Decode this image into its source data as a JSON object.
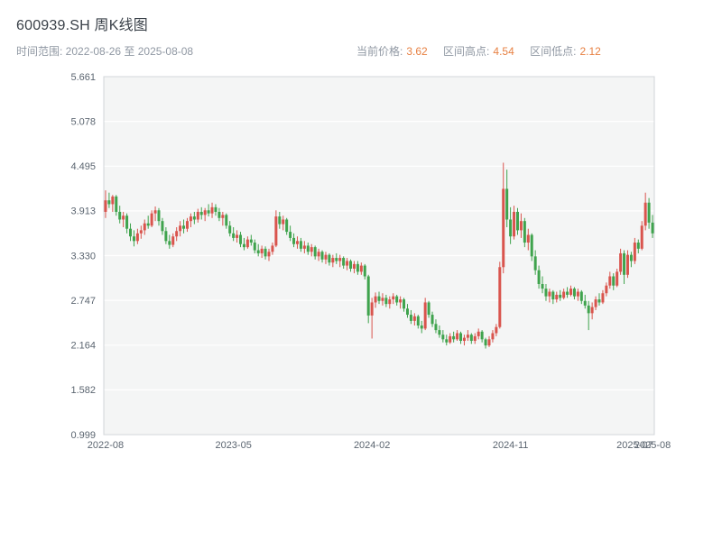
{
  "header": {
    "title": "600939.SH 周K线图",
    "time_range": "时间范围: 2022-08-26 至 2025-08-08",
    "stats": [
      {
        "label": "当前价格:",
        "value": "3.62"
      },
      {
        "label": "区间高点:",
        "value": "4.54"
      },
      {
        "label": "区间低点:",
        "value": "2.12"
      }
    ]
  },
  "colors": {
    "up_candle": "#d9544d",
    "down_candle": "#3fa34d",
    "plot_background": "#f4f5f5",
    "gridline": "#ffffff",
    "tick_text": "#5b6570",
    "accent_value": "#e78143",
    "plot_border": "#d0d4d8",
    "title_text": "#3a4149",
    "subtitle_text": "#9098a3"
  },
  "chart_data": {
    "type": "candlestick",
    "title": "600939.SH 周K线图",
    "interval": "weekly",
    "time_range": [
      "2022-08-26",
      "2025-08-08"
    ],
    "current_price": 3.62,
    "range_high": 4.54,
    "range_low": 2.12,
    "ylim": [
      0.999,
      5.661
    ],
    "y_tick_labels": [
      "0.999",
      "1.582",
      "2.164",
      "2.747",
      "3.330",
      "3.913",
      "4.495",
      "5.078",
      "5.661"
    ],
    "x_ticks": [
      {
        "index": 0,
        "label": "2022-08"
      },
      {
        "index": 36,
        "label": "2023-05"
      },
      {
        "index": 75,
        "label": "2024-02"
      },
      {
        "index": 114,
        "label": "2024-11"
      },
      {
        "index": 149,
        "label": "2025-07"
      },
      {
        "index": 154,
        "label": "2025-08"
      }
    ],
    "grid": true,
    "legend": false,
    "ohlc": [
      [
        3.9,
        4.18,
        3.82,
        4.05
      ],
      [
        4.05,
        4.15,
        3.95,
        4.0
      ],
      [
        4.0,
        4.12,
        3.9,
        4.1
      ],
      [
        4.1,
        4.12,
        3.85,
        3.9
      ],
      [
        3.9,
        3.98,
        3.75,
        3.8
      ],
      [
        3.8,
        3.9,
        3.7,
        3.85
      ],
      [
        3.85,
        3.88,
        3.62,
        3.68
      ],
      [
        3.68,
        3.75,
        3.52,
        3.58
      ],
      [
        3.58,
        3.66,
        3.45,
        3.52
      ],
      [
        3.52,
        3.68,
        3.48,
        3.62
      ],
      [
        3.62,
        3.72,
        3.55,
        3.66
      ],
      [
        3.66,
        3.8,
        3.6,
        3.75
      ],
      [
        3.75,
        3.85,
        3.68,
        3.72
      ],
      [
        3.72,
        3.92,
        3.7,
        3.88
      ],
      [
        3.88,
        3.97,
        3.78,
        3.92
      ],
      [
        3.92,
        3.95,
        3.72,
        3.78
      ],
      [
        3.78,
        3.82,
        3.6,
        3.65
      ],
      [
        3.65,
        3.7,
        3.48,
        3.52
      ],
      [
        3.52,
        3.6,
        3.42,
        3.47
      ],
      [
        3.47,
        3.62,
        3.44,
        3.58
      ],
      [
        3.58,
        3.7,
        3.52,
        3.65
      ],
      [
        3.65,
        3.78,
        3.58,
        3.72
      ],
      [
        3.72,
        3.8,
        3.62,
        3.68
      ],
      [
        3.68,
        3.82,
        3.64,
        3.78
      ],
      [
        3.78,
        3.88,
        3.7,
        3.84
      ],
      [
        3.84,
        3.9,
        3.74,
        3.8
      ],
      [
        3.8,
        3.94,
        3.76,
        3.9
      ],
      [
        3.9,
        3.96,
        3.8,
        3.86
      ],
      [
        3.86,
        3.95,
        3.78,
        3.92
      ],
      [
        3.92,
        4.0,
        3.84,
        3.88
      ],
      [
        3.88,
        4.02,
        3.82,
        3.96
      ],
      [
        3.96,
        4.0,
        3.85,
        3.9
      ],
      [
        3.9,
        3.95,
        3.78,
        3.82
      ],
      [
        3.82,
        3.9,
        3.72,
        3.86
      ],
      [
        3.86,
        3.88,
        3.68,
        3.72
      ],
      [
        3.72,
        3.78,
        3.58,
        3.62
      ],
      [
        3.62,
        3.7,
        3.52,
        3.56
      ],
      [
        3.56,
        3.66,
        3.5,
        3.6
      ],
      [
        3.6,
        3.64,
        3.44,
        3.48
      ],
      [
        3.48,
        3.56,
        3.4,
        3.44
      ],
      [
        3.44,
        3.58,
        3.42,
        3.54
      ],
      [
        3.54,
        3.6,
        3.46,
        3.5
      ],
      [
        3.5,
        3.54,
        3.36,
        3.4
      ],
      [
        3.4,
        3.48,
        3.32,
        3.36
      ],
      [
        3.36,
        3.46,
        3.3,
        3.42
      ],
      [
        3.42,
        3.45,
        3.28,
        3.32
      ],
      [
        3.32,
        3.42,
        3.26,
        3.38
      ],
      [
        3.38,
        3.5,
        3.34,
        3.46
      ],
      [
        3.46,
        3.92,
        3.44,
        3.84
      ],
      [
        3.84,
        3.9,
        3.68,
        3.74
      ],
      [
        3.74,
        3.85,
        3.66,
        3.8
      ],
      [
        3.8,
        3.82,
        3.6,
        3.64
      ],
      [
        3.64,
        3.72,
        3.52,
        3.56
      ],
      [
        3.56,
        3.62,
        3.44,
        3.48
      ],
      [
        3.48,
        3.58,
        3.42,
        3.52
      ],
      [
        3.52,
        3.56,
        3.38,
        3.42
      ],
      [
        3.42,
        3.52,
        3.36,
        3.46
      ],
      [
        3.46,
        3.5,
        3.34,
        3.38
      ],
      [
        3.38,
        3.48,
        3.32,
        3.44
      ],
      [
        3.44,
        3.46,
        3.28,
        3.32
      ],
      [
        3.32,
        3.42,
        3.26,
        3.38
      ],
      [
        3.38,
        3.4,
        3.24,
        3.28
      ],
      [
        3.28,
        3.38,
        3.22,
        3.34
      ],
      [
        3.34,
        3.36,
        3.2,
        3.24
      ],
      [
        3.24,
        3.34,
        3.18,
        3.3
      ],
      [
        3.3,
        3.36,
        3.22,
        3.26
      ],
      [
        3.26,
        3.34,
        3.18,
        3.3
      ],
      [
        3.3,
        3.32,
        3.16,
        3.2
      ],
      [
        3.2,
        3.3,
        3.14,
        3.26
      ],
      [
        3.26,
        3.28,
        3.12,
        3.16
      ],
      [
        3.16,
        3.26,
        3.1,
        3.22
      ],
      [
        3.22,
        3.26,
        3.08,
        3.12
      ],
      [
        3.12,
        3.24,
        3.08,
        3.2
      ],
      [
        3.2,
        3.22,
        3.02,
        3.06
      ],
      [
        3.06,
        3.08,
        2.45,
        2.55
      ],
      [
        2.55,
        2.78,
        2.25,
        2.72
      ],
      [
        2.72,
        2.85,
        2.65,
        2.8
      ],
      [
        2.8,
        2.86,
        2.7,
        2.74
      ],
      [
        2.74,
        2.84,
        2.68,
        2.78
      ],
      [
        2.78,
        2.82,
        2.66,
        2.7
      ],
      [
        2.7,
        2.8,
        2.64,
        2.76
      ],
      [
        2.76,
        2.84,
        2.7,
        2.8
      ],
      [
        2.8,
        2.82,
        2.68,
        2.72
      ],
      [
        2.72,
        2.8,
        2.64,
        2.76
      ],
      [
        2.76,
        2.78,
        2.6,
        2.64
      ],
      [
        2.64,
        2.7,
        2.52,
        2.56
      ],
      [
        2.56,
        2.62,
        2.44,
        2.48
      ],
      [
        2.48,
        2.58,
        2.42,
        2.54
      ],
      [
        2.54,
        2.56,
        2.38,
        2.42
      ],
      [
        2.42,
        2.48,
        2.32,
        2.38
      ],
      [
        2.38,
        2.78,
        2.36,
        2.72
      ],
      [
        2.72,
        2.74,
        2.52,
        2.56
      ],
      [
        2.56,
        2.6,
        2.4,
        2.44
      ],
      [
        2.44,
        2.5,
        2.32,
        2.36
      ],
      [
        2.36,
        2.42,
        2.26,
        2.3
      ],
      [
        2.3,
        2.36,
        2.2,
        2.24
      ],
      [
        2.24,
        2.3,
        2.16,
        2.2
      ],
      [
        2.2,
        2.32,
        2.18,
        2.28
      ],
      [
        2.28,
        2.34,
        2.2,
        2.24
      ],
      [
        2.24,
        2.36,
        2.22,
        2.32
      ],
      [
        2.32,
        2.34,
        2.18,
        2.22
      ],
      [
        2.22,
        2.3,
        2.16,
        2.26
      ],
      [
        2.26,
        2.36,
        2.22,
        2.3
      ],
      [
        2.3,
        2.32,
        2.18,
        2.22
      ],
      [
        2.22,
        2.32,
        2.18,
        2.28
      ],
      [
        2.28,
        2.38,
        2.24,
        2.34
      ],
      [
        2.34,
        2.36,
        2.2,
        2.24
      ],
      [
        2.24,
        2.26,
        2.12,
        2.16
      ],
      [
        2.16,
        2.28,
        2.14,
        2.24
      ],
      [
        2.24,
        2.36,
        2.2,
        2.32
      ],
      [
        2.32,
        2.44,
        2.28,
        2.4
      ],
      [
        2.4,
        3.25,
        2.38,
        3.18
      ],
      [
        3.18,
        4.54,
        3.1,
        4.2
      ],
      [
        4.2,
        4.45,
        3.7,
        3.8
      ],
      [
        3.8,
        3.96,
        3.48,
        3.58
      ],
      [
        3.58,
        3.98,
        3.54,
        3.9
      ],
      [
        3.9,
        3.95,
        3.6,
        3.66
      ],
      [
        3.66,
        3.88,
        3.56,
        3.78
      ],
      [
        3.78,
        3.82,
        3.44,
        3.5
      ],
      [
        3.5,
        3.68,
        3.4,
        3.6
      ],
      [
        3.6,
        3.62,
        3.26,
        3.32
      ],
      [
        3.32,
        3.4,
        3.08,
        3.14
      ],
      [
        3.14,
        3.2,
        2.9,
        2.96
      ],
      [
        2.96,
        3.06,
        2.84,
        2.9
      ],
      [
        2.9,
        2.96,
        2.74,
        2.8
      ],
      [
        2.8,
        2.9,
        2.72,
        2.86
      ],
      [
        2.86,
        2.88,
        2.7,
        2.76
      ],
      [
        2.76,
        2.86,
        2.72,
        2.82
      ],
      [
        2.82,
        2.88,
        2.74,
        2.78
      ],
      [
        2.78,
        2.9,
        2.76,
        2.86
      ],
      [
        2.86,
        2.92,
        2.78,
        2.82
      ],
      [
        2.82,
        2.94,
        2.8,
        2.9
      ],
      [
        2.9,
        2.92,
        2.76,
        2.8
      ],
      [
        2.8,
        2.9,
        2.74,
        2.86
      ],
      [
        2.86,
        2.88,
        2.7,
        2.74
      ],
      [
        2.74,
        2.82,
        2.64,
        2.68
      ],
      [
        2.68,
        2.74,
        2.36,
        2.58
      ],
      [
        2.58,
        2.72,
        2.5,
        2.66
      ],
      [
        2.66,
        2.8,
        2.62,
        2.76
      ],
      [
        2.76,
        2.84,
        2.68,
        2.72
      ],
      [
        2.72,
        2.88,
        2.7,
        2.84
      ],
      [
        2.84,
        2.98,
        2.8,
        2.94
      ],
      [
        2.94,
        3.12,
        2.9,
        3.06
      ],
      [
        3.06,
        3.1,
        2.88,
        2.94
      ],
      [
        2.94,
        3.16,
        2.92,
        3.12
      ],
      [
        3.12,
        3.42,
        3.08,
        3.36
      ],
      [
        3.36,
        3.4,
        2.96,
        3.08
      ],
      [
        3.08,
        3.4,
        3.04,
        3.34
      ],
      [
        3.34,
        3.38,
        3.18,
        3.26
      ],
      [
        3.26,
        3.56,
        3.22,
        3.5
      ],
      [
        3.5,
        3.54,
        3.36,
        3.42
      ],
      [
        3.42,
        3.78,
        3.4,
        3.72
      ],
      [
        3.72,
        4.15,
        3.66,
        4.02
      ],
      [
        4.02,
        4.08,
        3.68,
        3.76
      ],
      [
        3.76,
        3.86,
        3.56,
        3.62
      ]
    ]
  }
}
